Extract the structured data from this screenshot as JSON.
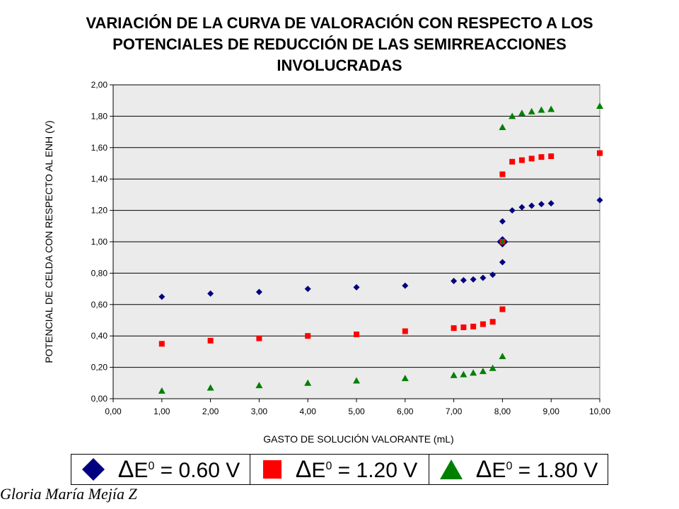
{
  "chart_data": {
    "type": "scatter",
    "title_lines": [
      "VARIACIÓN DE LA CURVA DE VALORACIÓN CON RESPECTO A LOS",
      "POTENCIALES DE REDUCCIÓN DE LAS SEMIRREACCIONES",
      "INVOLUCRADAS"
    ],
    "xlabel": "GASTO DE SOLUCIÓN  VALORANTE (mL)",
    "ylabel": "POTENCIAL DE CELDA CON RESPECTO AL ENH (V)",
    "xlim": [
      0,
      10
    ],
    "ylim": [
      0,
      2
    ],
    "x_ticks": [
      "0,00",
      "1,00",
      "2,00",
      "3,00",
      "4,00",
      "5,00",
      "6,00",
      "7,00",
      "8,00",
      "9,00",
      "10,00"
    ],
    "y_ticks": [
      "0,00",
      "0,20",
      "0,40",
      "0,60",
      "0,80",
      "1,00",
      "1,20",
      "1,40",
      "1,60",
      "1,80",
      "2,00"
    ],
    "grid": "horizontal",
    "legend_position": "bottom",
    "series": [
      {
        "marker": "diamond",
        "color": "#000080",
        "x": [
          1,
          2,
          3,
          4,
          5,
          6,
          7,
          7.2,
          7.4,
          7.6,
          7.8,
          8,
          8,
          8.2,
          8.4,
          8.6,
          8.8,
          9,
          10
        ],
        "y": [
          0.65,
          0.67,
          0.68,
          0.7,
          0.71,
          0.72,
          0.75,
          0.755,
          0.76,
          0.77,
          0.79,
          0.87,
          1.13,
          1.2,
          1.22,
          1.23,
          1.24,
          1.245,
          1.265
        ]
      },
      {
        "marker": "square",
        "color": "#ff0000",
        "x": [
          1,
          2,
          3,
          4,
          5,
          6,
          7,
          7.2,
          7.4,
          7.6,
          7.8,
          8,
          8,
          8.2,
          8.4,
          8.6,
          8.8,
          9,
          10
        ],
        "y": [
          0.35,
          0.37,
          0.385,
          0.4,
          0.41,
          0.43,
          0.45,
          0.455,
          0.46,
          0.475,
          0.49,
          0.57,
          1.43,
          1.51,
          1.52,
          1.53,
          1.54,
          1.545,
          1.565
        ]
      },
      {
        "marker": "triangle",
        "color": "#008000",
        "x": [
          1,
          2,
          3,
          4,
          5,
          6,
          7,
          7.2,
          7.4,
          7.6,
          7.8,
          8,
          8,
          8.2,
          8.4,
          8.6,
          8.8,
          9,
          10
        ],
        "y": [
          0.05,
          0.07,
          0.085,
          0.1,
          0.115,
          0.13,
          0.15,
          0.155,
          0.165,
          0.175,
          0.195,
          0.27,
          1.73,
          1.8,
          1.82,
          1.83,
          1.84,
          1.845,
          1.865
        ]
      }
    ],
    "equivalence_points": [
      {
        "x": 8,
        "y": 1.0,
        "marker": "diamond",
        "color": "#000080"
      },
      {
        "x": 8,
        "y": 1.0,
        "marker": "square",
        "color": "#ff0000"
      },
      {
        "x": 8,
        "y": 1.0,
        "marker": "triangle",
        "color": "#008000"
      }
    ]
  },
  "legend": {
    "items": [
      {
        "delta": "Δ",
        "text_before": "E",
        "superscript": "0",
        "text_after": " = 0.60 V",
        "marker": "diamond",
        "color": "#000080"
      },
      {
        "delta": "Δ",
        "text_before": "E",
        "superscript": "0",
        "text_after": " = 1.20 V",
        "marker": "square",
        "color": "#ff0000"
      },
      {
        "delta": "Δ",
        "text_before": "E",
        "superscript": "0",
        "text_after": " = 1.80 V",
        "marker": "triangle",
        "color": "#008000"
      }
    ]
  },
  "signature": "Gloria María Mejía Z",
  "colors": {
    "plot_background": "#ebebeb",
    "gridline": "#000000"
  }
}
